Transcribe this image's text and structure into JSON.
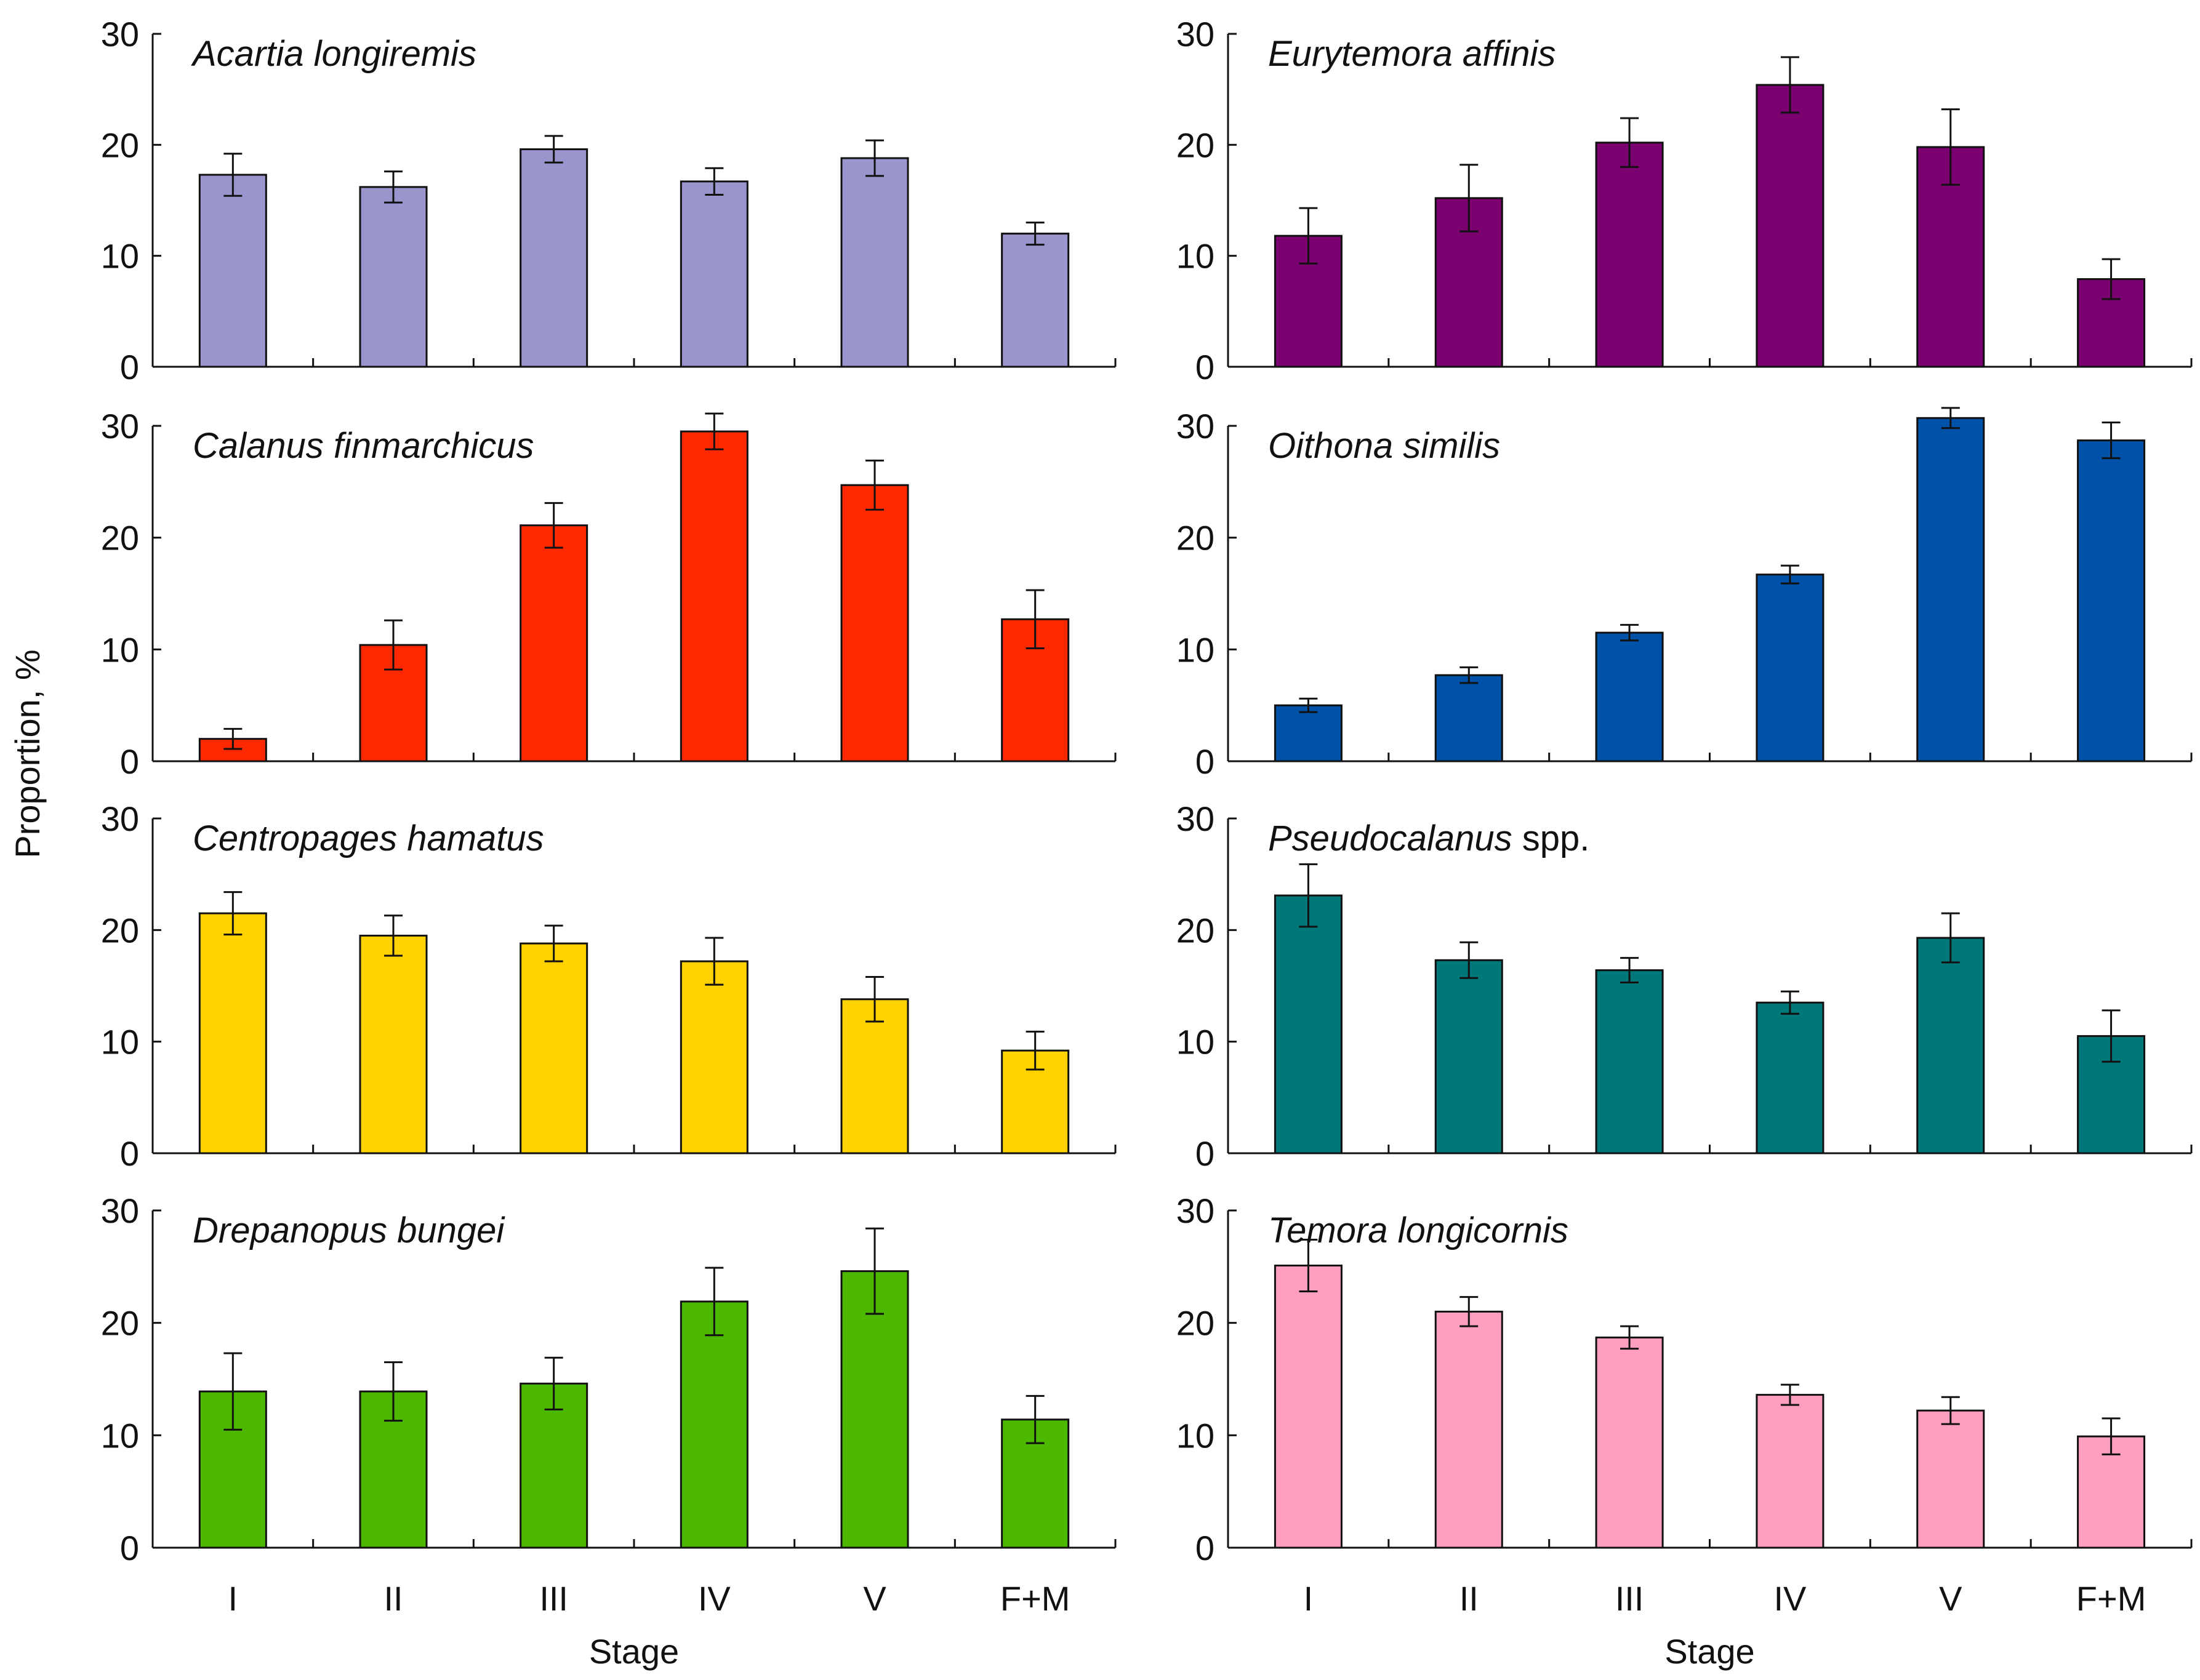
{
  "chart_data": [
    {
      "type": "bar",
      "title": "Acartia longiremis",
      "title_italic": "Acartia longiremis",
      "title_suffix": "",
      "color": "#9A95CC",
      "categories": [
        "I",
        "II",
        "III",
        "IV",
        "V",
        "F+M"
      ],
      "values": [
        17.3,
        16.2,
        19.6,
        16.7,
        18.8,
        12.0
      ],
      "errors": [
        1.9,
        1.4,
        1.2,
        1.2,
        1.6,
        1.0
      ],
      "ylim": [
        0,
        30
      ],
      "yticks": [
        0,
        10,
        20,
        30
      ],
      "xlabel": "",
      "ylabel": "Proportion, %"
    },
    {
      "type": "bar",
      "title": "Eurytemora affinis",
      "title_italic": "Eurytemora affinis",
      "title_suffix": "",
      "color": "#7B0070",
      "categories": [
        "I",
        "II",
        "III",
        "IV",
        "V",
        "F+M"
      ],
      "values": [
        11.8,
        15.2,
        20.2,
        25.4,
        19.8,
        7.9
      ],
      "errors": [
        2.5,
        3.0,
        2.2,
        2.5,
        3.4,
        1.8
      ],
      "ylim": [
        0,
        30
      ],
      "yticks": [
        0,
        10,
        20,
        30
      ],
      "xlabel": "",
      "ylabel": "Proportion, %"
    },
    {
      "type": "bar",
      "title": "Calanus finmarchicus",
      "title_italic": "Calanus finmarchicus",
      "title_suffix": "",
      "color": "#FF2800",
      "categories": [
        "I",
        "II",
        "III",
        "IV",
        "V",
        "F+M"
      ],
      "values": [
        2.0,
        10.4,
        21.1,
        29.5,
        24.7,
        12.7
      ],
      "errors": [
        0.9,
        2.2,
        2.0,
        1.6,
        2.2,
        2.6
      ],
      "ylim": [
        0,
        30
      ],
      "yticks": [
        0,
        10,
        20,
        30
      ],
      "xlabel": "",
      "ylabel": "Proportion, %"
    },
    {
      "type": "bar",
      "title": "Oithona similis",
      "title_italic": "Oithona similis",
      "title_suffix": "",
      "color": "#0051A8",
      "categories": [
        "I",
        "II",
        "III",
        "IV",
        "V",
        "F+M"
      ],
      "values": [
        5.0,
        7.7,
        11.5,
        16.7,
        30.7,
        28.7
      ],
      "errors": [
        0.6,
        0.7,
        0.7,
        0.8,
        0.9,
        1.6
      ],
      "ylim": [
        0,
        30
      ],
      "yticks": [
        0,
        10,
        20,
        30
      ],
      "xlabel": "",
      "ylabel": "Proportion, %"
    },
    {
      "type": "bar",
      "title": "Centropages hamatus",
      "title_italic": "Centropages hamatus",
      "title_suffix": "",
      "color": "#FFD200",
      "categories": [
        "I",
        "II",
        "III",
        "IV",
        "V",
        "F+M"
      ],
      "values": [
        21.5,
        19.5,
        18.8,
        17.2,
        13.8,
        9.2
      ],
      "errors": [
        1.9,
        1.8,
        1.6,
        2.1,
        2.0,
        1.7
      ],
      "ylim": [
        0,
        30
      ],
      "yticks": [
        0,
        10,
        20,
        30
      ],
      "xlabel": "",
      "ylabel": "Proportion, %"
    },
    {
      "type": "bar",
      "title": "Pseudocalanus spp.",
      "title_italic": "Pseudocalanus",
      "title_suffix": " spp.",
      "color": "#00787A",
      "categories": [
        "I",
        "II",
        "III",
        "IV",
        "V",
        "F+M"
      ],
      "values": [
        23.1,
        17.3,
        16.4,
        13.5,
        19.3,
        10.5
      ],
      "errors": [
        2.8,
        1.6,
        1.1,
        1.0,
        2.2,
        2.3
      ],
      "ylim": [
        0,
        30
      ],
      "yticks": [
        0,
        10,
        20,
        30
      ],
      "xlabel": "",
      "ylabel": "Proportion, %"
    },
    {
      "type": "bar",
      "title": "Drepanopus bungei",
      "title_italic": "Drepanopus bungei",
      "title_suffix": "",
      "color": "#4DB800",
      "categories": [
        "I",
        "II",
        "III",
        "IV",
        "V",
        "F+M"
      ],
      "values": [
        13.9,
        13.9,
        14.6,
        21.9,
        24.6,
        11.4
      ],
      "errors": [
        3.4,
        2.6,
        2.3,
        3.0,
        3.8,
        2.1
      ],
      "ylim": [
        0,
        30
      ],
      "yticks": [
        0,
        10,
        20,
        30
      ],
      "xlabel": "Stage",
      "ylabel": "Proportion, %"
    },
    {
      "type": "bar",
      "title": "Temora longicornis",
      "title_italic": "Temora longicornis",
      "title_suffix": "",
      "color": "#FF9EBE",
      "categories": [
        "I",
        "II",
        "III",
        "IV",
        "V",
        "F+M"
      ],
      "values": [
        25.1,
        21.0,
        18.7,
        13.6,
        12.2,
        9.9
      ],
      "errors": [
        2.3,
        1.3,
        1.0,
        0.9,
        1.2,
        1.6
      ],
      "ylim": [
        0,
        30
      ],
      "yticks": [
        0,
        10,
        20,
        30
      ],
      "xlabel": "Stage",
      "ylabel": "Proportion, %"
    }
  ],
  "shared": {
    "ylabel": "Proportion, %",
    "xlabel": "Stage"
  }
}
